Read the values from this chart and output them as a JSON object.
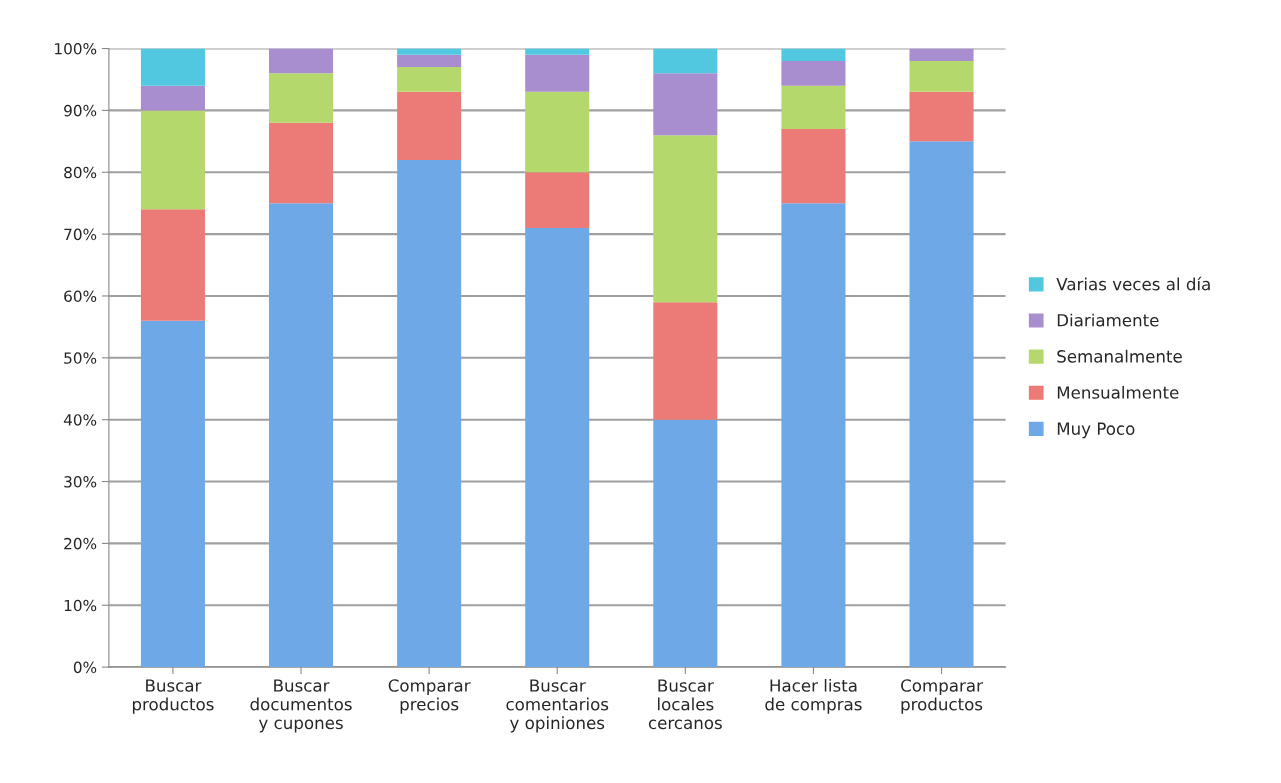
{
  "chart_data": {
    "type": "bar",
    "stacked": true,
    "categories": [
      "Buscar\nproductos",
      "Buscar\ndocumentos\ny cupones",
      "Comparar\nprecios",
      "Buscar\ncomentarios\ny opiniones",
      "Buscar\nlocales\ncercanos",
      "Hacer lista\nde compras",
      "Comparar\nproductos"
    ],
    "series": [
      {
        "name": "Muy Poco",
        "color": "#6fa8e6",
        "values": [
          56,
          75,
          82,
          71,
          40,
          75,
          85
        ]
      },
      {
        "name": "Mensualmente",
        "color": "#ec7a76",
        "values": [
          18,
          13,
          11,
          9,
          19,
          12,
          8
        ]
      },
      {
        "name": "Semanalmente",
        "color": "#b5d86c",
        "values": [
          16,
          8,
          4,
          13,
          27,
          7,
          5
        ]
      },
      {
        "name": "Diariamente",
        "color": "#a88dcf",
        "values": [
          4,
          4,
          2,
          6,
          10,
          4,
          2
        ]
      },
      {
        "name": "Varias veces al día",
        "color": "#52c8e0",
        "values": [
          6,
          0,
          1,
          1,
          4,
          2,
          0
        ]
      }
    ],
    "ylim": [
      0,
      100
    ],
    "yticks": [
      {
        "value": 0,
        "label": "0%"
      },
      {
        "value": 10,
        "label": "10%"
      },
      {
        "value": 20,
        "label": "20%"
      },
      {
        "value": 30,
        "label": "30%"
      },
      {
        "value": 40,
        "label": "40%"
      },
      {
        "value": 50,
        "label": "50%"
      },
      {
        "value": 60,
        "label": "60%"
      },
      {
        "value": 70,
        "label": "70%"
      },
      {
        "value": 80,
        "label": "80%"
      },
      {
        "value": 90,
        "label": "90%"
      },
      {
        "value": 100,
        "label": "100%"
      }
    ],
    "grid": "y",
    "legend": "right"
  }
}
